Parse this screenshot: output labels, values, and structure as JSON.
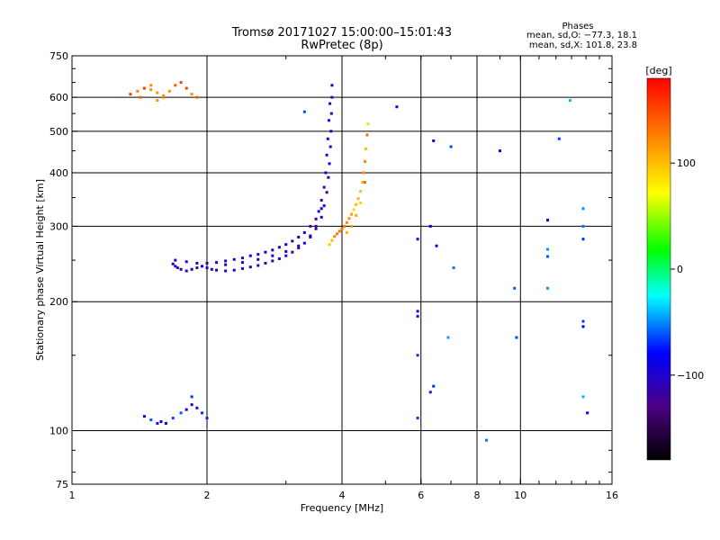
{
  "chart_data": {
    "type": "scatter",
    "title": "Tromsø 20171027 15:00:00–15:01:43",
    "subtitle": "RwPretec (8p)",
    "xlabel": "Frequency [MHz]",
    "ylabel": "Stationary phase Virtual Height [km]",
    "x_scale": "log",
    "y_scale": "log",
    "xlim": [
      1,
      16
    ],
    "ylim": [
      75,
      750
    ],
    "x_ticks": [
      1,
      2,
      4,
      6,
      8,
      10,
      16
    ],
    "x_tick_labels": [
      "1",
      "2",
      "4",
      "6",
      "8",
      "10",
      "16"
    ],
    "y_ticks": [
      75,
      100,
      200,
      300,
      400,
      500,
      600,
      750
    ],
    "y_tick_labels": [
      "75",
      "100",
      "200",
      "300",
      "400",
      "500",
      "600",
      "750"
    ],
    "grid_x": [
      2,
      4,
      6,
      8,
      10
    ],
    "grid_y": [
      100,
      200,
      300,
      400,
      500,
      600
    ],
    "phases_header": "Phases",
    "stats": [
      "mean, sd,O: −77.3, 18.1",
      "mean, sd,X: 101.8, 23.8"
    ],
    "colorbar": {
      "label": "[deg]",
      "min": -180,
      "max": 180,
      "ticks": [
        100,
        0,
        -100
      ],
      "tick_labels": [
        "100",
        "0",
        "−100"
      ],
      "colors": [
        "#000000",
        "#4b0082",
        "#0000ff",
        "#00ffff",
        "#00ff00",
        "#ffff00",
        "#ff8000",
        "#ff0000"
      ]
    },
    "series": [
      {
        "name": "O-trace",
        "description": "bluish trace",
        "points": [
          [
            1.68,
            245
          ],
          [
            1.7,
            242
          ],
          [
            1.72,
            240
          ],
          [
            1.75,
            238
          ],
          [
            1.8,
            236
          ],
          [
            1.85,
            238
          ],
          [
            1.9,
            240
          ],
          [
            1.95,
            242
          ],
          [
            2.0,
            240
          ],
          [
            2.05,
            238
          ],
          [
            2.1,
            237
          ],
          [
            2.2,
            236
          ],
          [
            2.3,
            237
          ],
          [
            2.4,
            239
          ],
          [
            2.5,
            241
          ],
          [
            2.6,
            243
          ],
          [
            2.7,
            246
          ],
          [
            2.8,
            249
          ],
          [
            2.9,
            252
          ],
          [
            3.0,
            256
          ],
          [
            3.1,
            261
          ],
          [
            3.2,
            267
          ],
          [
            3.3,
            274
          ],
          [
            3.4,
            283
          ],
          [
            3.5,
            296
          ],
          [
            3.6,
            315
          ],
          [
            3.65,
            335
          ],
          [
            3.7,
            360
          ],
          [
            3.73,
            390
          ],
          [
            3.75,
            420
          ],
          [
            3.77,
            460
          ],
          [
            3.78,
            500
          ],
          [
            3.79,
            550
          ],
          [
            3.8,
            600
          ],
          [
            3.8,
            640
          ],
          [
            1.7,
            250
          ],
          [
            1.8,
            248
          ],
          [
            1.9,
            246
          ],
          [
            2.0,
            246
          ],
          [
            2.1,
            247
          ],
          [
            2.2,
            249
          ],
          [
            2.3,
            251
          ],
          [
            2.4,
            253
          ],
          [
            2.5,
            256
          ],
          [
            2.6,
            258
          ],
          [
            2.7,
            261
          ],
          [
            2.8,
            264
          ],
          [
            2.9,
            268
          ],
          [
            3.0,
            272
          ],
          [
            3.1,
            277
          ],
          [
            3.2,
            283
          ],
          [
            3.3,
            290
          ],
          [
            3.4,
            300
          ],
          [
            3.5,
            312
          ],
          [
            3.55,
            325
          ],
          [
            3.6,
            345
          ],
          [
            3.65,
            370
          ],
          [
            3.68,
            400
          ],
          [
            3.7,
            440
          ],
          [
            3.72,
            480
          ],
          [
            3.74,
            530
          ],
          [
            3.76,
            580
          ],
          [
            2.2,
            244
          ],
          [
            2.4,
            247
          ],
          [
            2.6,
            251
          ],
          [
            2.8,
            256
          ],
          [
            3.0,
            262
          ],
          [
            3.2,
            270
          ],
          [
            3.4,
            285
          ],
          [
            3.5,
            300
          ],
          [
            3.6,
            330
          ]
        ],
        "color_value": -100
      },
      {
        "name": "X-trace",
        "description": "orange-yellow trace",
        "points": [
          [
            3.75,
            272
          ],
          [
            3.8,
            278
          ],
          [
            3.85,
            284
          ],
          [
            3.9,
            288
          ],
          [
            3.95,
            292
          ],
          [
            4.0,
            296
          ],
          [
            4.05,
            300
          ],
          [
            4.1,
            306
          ],
          [
            4.15,
            313
          ],
          [
            4.2,
            320
          ],
          [
            4.25,
            328
          ],
          [
            4.3,
            337
          ],
          [
            4.35,
            348
          ],
          [
            4.4,
            362
          ],
          [
            4.45,
            380
          ],
          [
            4.48,
            400
          ],
          [
            4.5,
            425
          ],
          [
            4.52,
            455
          ],
          [
            4.55,
            490
          ],
          [
            4.57,
            520
          ],
          [
            4.1,
            290
          ],
          [
            4.2,
            300
          ],
          [
            4.3,
            318
          ],
          [
            4.4,
            340
          ],
          [
            4.5,
            380
          ]
        ],
        "color_value": 110
      },
      {
        "name": "E-region echoes",
        "description": "low-height cluster",
        "points": [
          [
            1.45,
            108
          ],
          [
            1.5,
            106
          ],
          [
            1.55,
            104
          ],
          [
            1.58,
            105
          ],
          [
            1.62,
            104
          ],
          [
            1.68,
            107
          ],
          [
            1.75,
            110
          ],
          [
            1.8,
            112
          ],
          [
            1.85,
            115
          ],
          [
            1.9,
            113
          ],
          [
            1.95,
            110
          ],
          [
            1.85,
            120
          ],
          [
            2.0,
            107
          ]
        ],
        "color_value": -80
      },
      {
        "name": "High-altitude echoes",
        "description": "cluster near 600 km",
        "points": [
          [
            1.35,
            610
          ],
          [
            1.4,
            620
          ],
          [
            1.45,
            630
          ],
          [
            1.5,
            625
          ],
          [
            1.55,
            615
          ],
          [
            1.6,
            605
          ],
          [
            1.65,
            620
          ],
          [
            1.7,
            640
          ],
          [
            1.75,
            650
          ],
          [
            1.8,
            630
          ],
          [
            1.85,
            610
          ],
          [
            1.9,
            600
          ],
          [
            1.5,
            640
          ],
          [
            1.6,
            600
          ],
          [
            1.42,
            600
          ],
          [
            1.55,
            590
          ]
        ],
        "color_value": 140
      },
      {
        "name": "Scattered echoes",
        "description": "isolated points",
        "points": [
          [
            5.9,
            107
          ],
          [
            6.3,
            123
          ],
          [
            6.4,
            127
          ],
          [
            6.9,
            165
          ],
          [
            5.9,
            190
          ],
          [
            5.9,
            185
          ],
          [
            6.5,
            270
          ],
          [
            7.1,
            240
          ],
          [
            6.4,
            475
          ],
          [
            7.0,
            460
          ],
          [
            9.0,
            450
          ],
          [
            9.7,
            215
          ],
          [
            9.8,
            165
          ],
          [
            11.5,
            310
          ],
          [
            11.5,
            265
          ],
          [
            11.5,
            255
          ],
          [
            11.5,
            215
          ],
          [
            12.2,
            480
          ],
          [
            12.9,
            590
          ],
          [
            13.8,
            330
          ],
          [
            13.8,
            300
          ],
          [
            13.8,
            280
          ],
          [
            13.8,
            180
          ],
          [
            13.8,
            175
          ],
          [
            13.8,
            120
          ],
          [
            14.1,
            110
          ],
          [
            5.3,
            570
          ],
          [
            5.9,
            280
          ],
          [
            5.9,
            150
          ],
          [
            6.3,
            300
          ],
          [
            8.4,
            95
          ],
          [
            3.3,
            555
          ]
        ],
        "color_value": -60
      }
    ]
  }
}
